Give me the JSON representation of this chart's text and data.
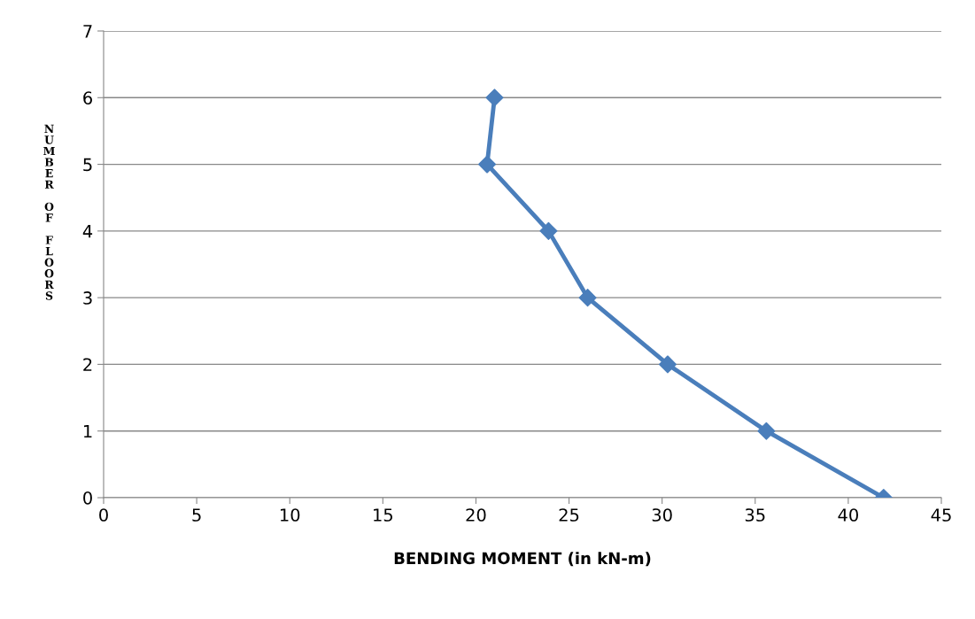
{
  "chart_data": {
    "type": "line",
    "xlabel": "BENDING MOMENT (in kN-m)",
    "ylabel": "NUMBER OF FLOORS",
    "series": [
      {
        "color": "#4a7ebb",
        "x": [
          41.9,
          35.6,
          30.3,
          26.0,
          23.9,
          20.6,
          21.0
        ],
        "values": [
          0,
          1,
          2,
          3,
          4,
          5,
          6
        ]
      }
    ],
    "xlim": [
      0,
      45
    ],
    "xticks": [
      0,
      5,
      10,
      15,
      20,
      25,
      30,
      35,
      40,
      45
    ],
    "ylim": [
      0,
      7
    ],
    "yticks": [
      0,
      1,
      2,
      3,
      4,
      5,
      6,
      7
    ],
    "grid": "y",
    "marker": "diamond",
    "line_style": "solid",
    "legend": false
  }
}
